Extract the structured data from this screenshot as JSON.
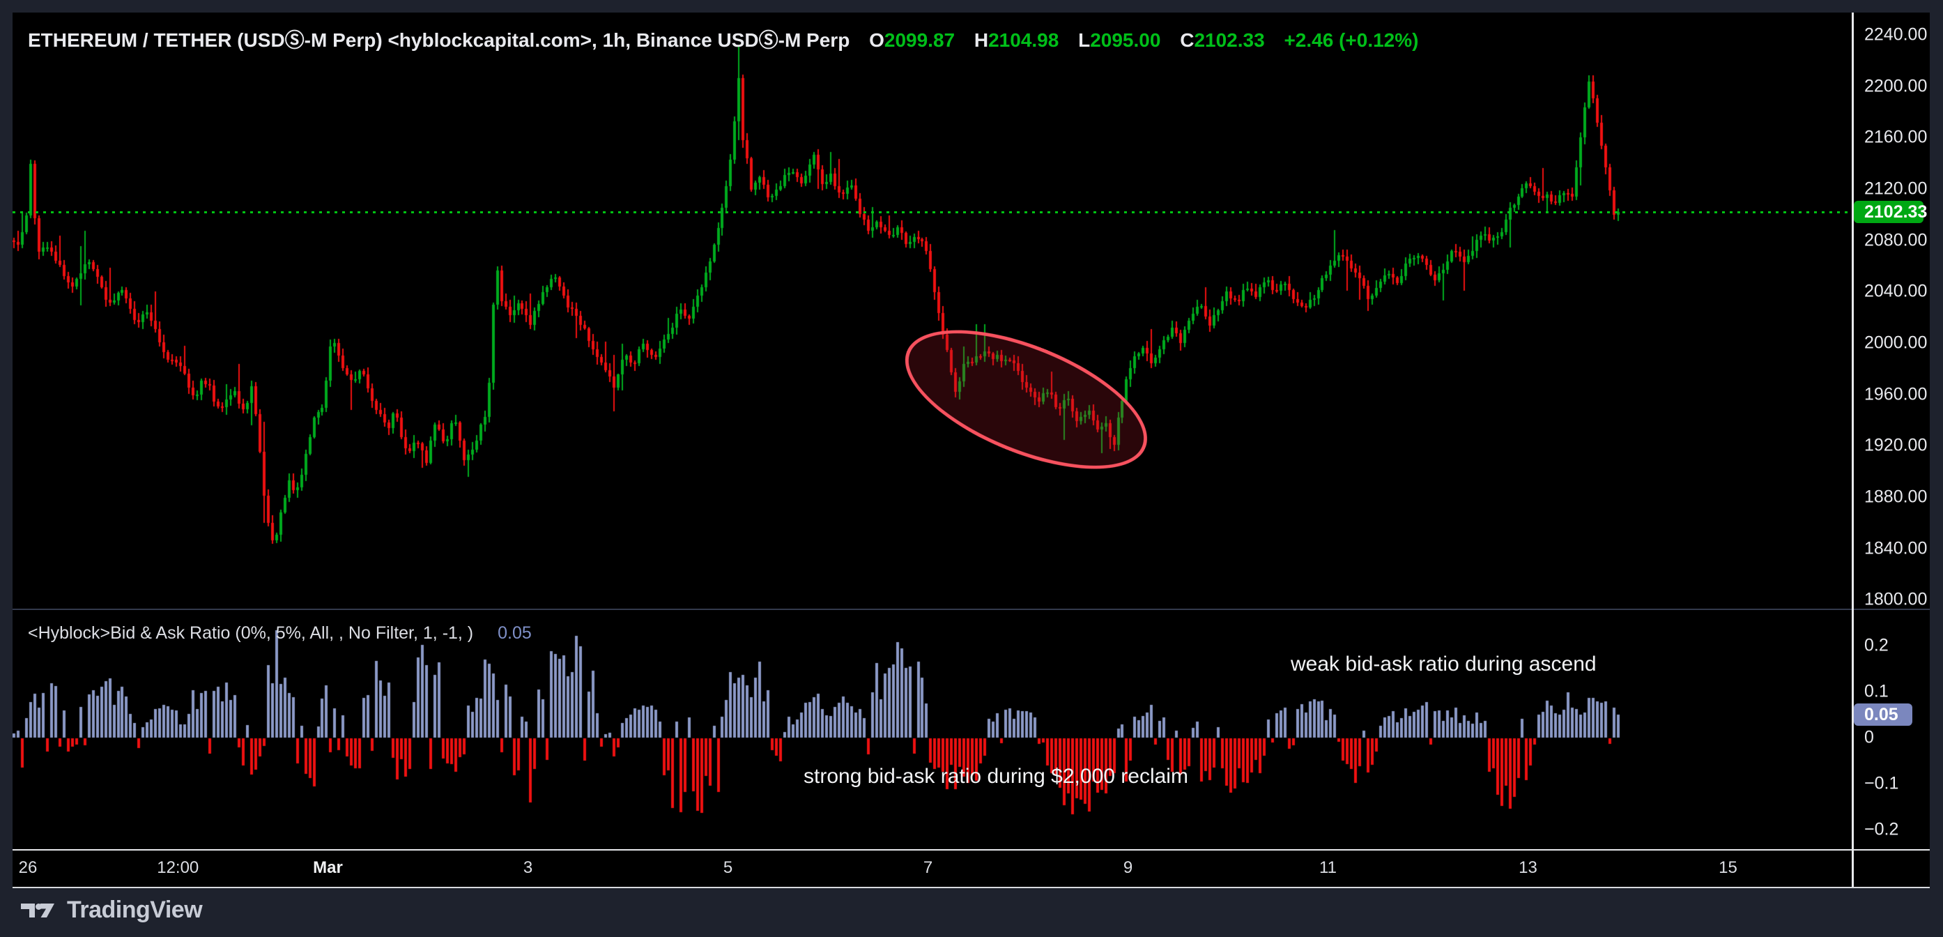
{
  "header": {
    "symbol_title": "ETHEREUM / TETHER (USDⓈ-M Perp) <hyblockcapital.com>, 1h, Binance USDⓈ-M Perp",
    "o_label": "O",
    "o": "2099.87",
    "h_label": "H",
    "h": "2104.98",
    "l_label": "L",
    "l": "2095.00",
    "c_label": "C",
    "c": "2102.33",
    "change": "+2.46 (+0.12%)"
  },
  "indicator": {
    "title": "<Hyblock>Bid & Ask Ratio (0%, 5%, All, , No Filter, 1, -1, )",
    "value": "0.05",
    "badge": "0.05"
  },
  "price_axis": {
    "last_price_badge": "2102.33"
  },
  "annotations": {
    "weak": "weak bid-ask ratio during ascend",
    "strong": "strong bid-ask ratio during $2,000 reclaim"
  },
  "footer": {
    "brand": "TradingView"
  },
  "colors": {
    "up": "#00ab1e",
    "down": "#ee1111",
    "bid_bar": "#8b99c7",
    "price_badge": "#00a813",
    "ratio_badge": "#7b87be",
    "dotted_line": "#00c213",
    "legend_green": "#00bf19",
    "annotation_red": "#f7525f"
  },
  "chart_data": {
    "type": "candlestick+histogram",
    "title": "ETHEREUM / TETHER (USDⓈ-M Perp) 1h with Hyblock Bid & Ask Ratio",
    "timeframe": "1h",
    "day_range": [
      -0.16,
      15.955
    ],
    "last_close": 2102.33,
    "ohlc_last": {
      "open": 2099.87,
      "high": 2104.98,
      "low": 2095.0,
      "close": 2102.33
    },
    "price_axis_ticks": [
      {
        "label": "2240.00",
        "p": 2240
      },
      {
        "label": "2200.00",
        "p": 2200
      },
      {
        "label": "2160.00",
        "p": 2160
      },
      {
        "label": "2120.00",
        "p": 2120
      },
      {
        "label": "2080.00",
        "p": 2080
      },
      {
        "label": "2040.00",
        "p": 2040
      },
      {
        "label": "2000.00",
        "p": 2000
      },
      {
        "label": "1960.00",
        "p": 1960
      },
      {
        "label": "1920.00",
        "p": 1920
      },
      {
        "label": "1880.00",
        "p": 1880
      },
      {
        "label": "1840.00",
        "p": 1840
      },
      {
        "label": "1800.00",
        "p": 1800
      }
    ],
    "ratio_axis_ticks": [
      {
        "label": "0.2",
        "v": 0.2
      },
      {
        "label": "0.1",
        "v": 0.1
      },
      {
        "label": "0",
        "v": 0
      },
      {
        "label": "−0.1",
        "v": -0.1
      },
      {
        "label": "−0.2",
        "v": -0.2
      }
    ],
    "ratio_badge_value": 0.05,
    "ratio_last_value": 0.05,
    "time_ticks": [
      {
        "label": "26",
        "day": 0
      },
      {
        "label": "12:00",
        "day": 1.5
      },
      {
        "label": "Mar",
        "day": 3,
        "bold": true
      },
      {
        "label": "3",
        "day": 5
      },
      {
        "label": "5",
        "day": 7
      },
      {
        "label": "7",
        "day": 9
      },
      {
        "label": "9",
        "day": 11
      },
      {
        "label": "11",
        "day": 13
      },
      {
        "label": "13",
        "day": 15
      },
      {
        "label": "15",
        "day": 17
      }
    ],
    "price_path_anchors": [
      [
        -0.16,
        2082
      ],
      [
        -0.08,
        2074
      ],
      [
        0.0,
        2092
      ],
      [
        0.04,
        2150
      ],
      [
        0.12,
        2068
      ],
      [
        0.2,
        2078
      ],
      [
        0.28,
        2068
      ],
      [
        0.38,
        2052
      ],
      [
        0.47,
        2044
      ],
      [
        0.56,
        2058
      ],
      [
        0.65,
        2062
      ],
      [
        0.74,
        2044
      ],
      [
        0.83,
        2030
      ],
      [
        0.96,
        2042
      ],
      [
        1.05,
        2024
      ],
      [
        1.11,
        2016
      ],
      [
        1.21,
        2026
      ],
      [
        1.3,
        2008
      ],
      [
        1.39,
        1992
      ],
      [
        1.49,
        1984
      ],
      [
        1.58,
        1977
      ],
      [
        1.64,
        1966
      ],
      [
        1.7,
        1958
      ],
      [
        1.77,
        1972
      ],
      [
        1.83,
        1968
      ],
      [
        1.89,
        1954
      ],
      [
        1.95,
        1948
      ],
      [
        2.02,
        1958
      ],
      [
        2.08,
        1963
      ],
      [
        2.14,
        1952
      ],
      [
        2.2,
        1946
      ],
      [
        2.26,
        1968
      ],
      [
        2.32,
        1934
      ],
      [
        2.38,
        1881
      ],
      [
        2.44,
        1854
      ],
      [
        2.48,
        1838
      ],
      [
        2.55,
        1868
      ],
      [
        2.63,
        1891
      ],
      [
        2.7,
        1881
      ],
      [
        2.8,
        1913
      ],
      [
        2.88,
        1939
      ],
      [
        2.97,
        1950
      ],
      [
        3.03,
        1988
      ],
      [
        3.07,
        2006
      ],
      [
        3.12,
        1994
      ],
      [
        3.17,
        1983
      ],
      [
        3.25,
        1968
      ],
      [
        3.32,
        1975
      ],
      [
        3.38,
        1977
      ],
      [
        3.44,
        1962
      ],
      [
        3.5,
        1948
      ],
      [
        3.57,
        1940
      ],
      [
        3.63,
        1934
      ],
      [
        3.69,
        1948
      ],
      [
        3.75,
        1930
      ],
      [
        3.81,
        1913
      ],
      [
        3.88,
        1920
      ],
      [
        3.94,
        1923
      ],
      [
        4.0,
        1903
      ],
      [
        4.09,
        1939
      ],
      [
        4.19,
        1919
      ],
      [
        4.29,
        1944
      ],
      [
        4.37,
        1909
      ],
      [
        4.44,
        1916
      ],
      [
        4.5,
        1923
      ],
      [
        4.56,
        1938
      ],
      [
        4.62,
        1950
      ],
      [
        4.68,
        2040
      ],
      [
        4.7,
        2072
      ],
      [
        4.74,
        2036
      ],
      [
        4.83,
        2021
      ],
      [
        4.93,
        2031
      ],
      [
        5.05,
        2016
      ],
      [
        5.18,
        2040
      ],
      [
        5.3,
        2052
      ],
      [
        5.42,
        2030
      ],
      [
        5.55,
        2016
      ],
      [
        5.67,
        1997
      ],
      [
        5.8,
        1977
      ],
      [
        5.88,
        1966
      ],
      [
        5.98,
        1992
      ],
      [
        6.07,
        1983
      ],
      [
        6.17,
        2001
      ],
      [
        6.29,
        1987
      ],
      [
        6.41,
        2006
      ],
      [
        6.54,
        2025
      ],
      [
        6.64,
        2021
      ],
      [
        6.72,
        2040
      ],
      [
        6.81,
        2055
      ],
      [
        6.91,
        2084
      ],
      [
        7.01,
        2122
      ],
      [
        7.06,
        2151
      ],
      [
        7.11,
        2190
      ],
      [
        7.13,
        2208
      ],
      [
        7.16,
        2162
      ],
      [
        7.22,
        2140
      ],
      [
        7.26,
        2117
      ],
      [
        7.35,
        2132
      ],
      [
        7.43,
        2113
      ],
      [
        7.53,
        2122
      ],
      [
        7.6,
        2130
      ],
      [
        7.66,
        2136
      ],
      [
        7.72,
        2126
      ],
      [
        7.78,
        2127
      ],
      [
        7.88,
        2146
      ],
      [
        7.97,
        2122
      ],
      [
        8.05,
        2132
      ],
      [
        8.15,
        2113
      ],
      [
        8.25,
        2122
      ],
      [
        8.34,
        2103
      ],
      [
        8.43,
        2089
      ],
      [
        8.53,
        2094
      ],
      [
        8.63,
        2084
      ],
      [
        8.71,
        2089
      ],
      [
        8.8,
        2079
      ],
      [
        8.9,
        2084
      ],
      [
        9.0,
        2074
      ],
      [
        9.08,
        2045
      ],
      [
        9.17,
        2006
      ],
      [
        9.25,
        1981
      ],
      [
        9.31,
        1958
      ],
      [
        9.37,
        1983
      ],
      [
        9.5,
        1988
      ],
      [
        9.62,
        1992
      ],
      [
        9.75,
        1987
      ],
      [
        9.87,
        1983
      ],
      [
        9.99,
        1968
      ],
      [
        10.12,
        1953
      ],
      [
        10.21,
        1963
      ],
      [
        10.33,
        1948
      ],
      [
        10.42,
        1958
      ],
      [
        10.52,
        1938
      ],
      [
        10.62,
        1948
      ],
      [
        10.71,
        1934
      ],
      [
        10.81,
        1938
      ],
      [
        10.87,
        1912
      ],
      [
        10.92,
        1942
      ],
      [
        11.0,
        1968
      ],
      [
        11.08,
        1987
      ],
      [
        11.17,
        1997
      ],
      [
        11.27,
        1983
      ],
      [
        11.37,
        2001
      ],
      [
        11.46,
        2011
      ],
      [
        11.55,
        2001
      ],
      [
        11.65,
        2021
      ],
      [
        11.75,
        2030
      ],
      [
        11.84,
        2016
      ],
      [
        11.92,
        2025
      ],
      [
        12.02,
        2040
      ],
      [
        12.12,
        2030
      ],
      [
        12.21,
        2045
      ],
      [
        12.3,
        2035
      ],
      [
        12.4,
        2050
      ],
      [
        12.5,
        2040
      ],
      [
        12.58,
        2050
      ],
      [
        12.67,
        2035
      ],
      [
        12.77,
        2025
      ],
      [
        12.87,
        2035
      ],
      [
        12.96,
        2050
      ],
      [
        13.05,
        2060
      ],
      [
        13.15,
        2070
      ],
      [
        13.25,
        2060
      ],
      [
        13.33,
        2050
      ],
      [
        13.43,
        2035
      ],
      [
        13.52,
        2045
      ],
      [
        13.62,
        2055
      ],
      [
        13.71,
        2045
      ],
      [
        13.8,
        2060
      ],
      [
        13.9,
        2070
      ],
      [
        14.0,
        2060
      ],
      [
        14.09,
        2050
      ],
      [
        14.18,
        2060
      ],
      [
        14.28,
        2074
      ],
      [
        14.38,
        2065
      ],
      [
        14.47,
        2074
      ],
      [
        14.56,
        2084
      ],
      [
        14.66,
        2079
      ],
      [
        14.76,
        2089
      ],
      [
        14.84,
        2103
      ],
      [
        14.93,
        2117
      ],
      [
        15.03,
        2127
      ],
      [
        15.13,
        2113
      ],
      [
        15.21,
        2117
      ],
      [
        15.3,
        2108
      ],
      [
        15.37,
        2117
      ],
      [
        15.46,
        2113
      ],
      [
        15.52,
        2141
      ],
      [
        15.58,
        2180
      ],
      [
        15.64,
        2205
      ],
      [
        15.7,
        2180
      ],
      [
        15.76,
        2151
      ],
      [
        15.83,
        2122
      ],
      [
        15.89,
        2108
      ],
      [
        15.955,
        2102.33
      ]
    ],
    "ratio_segments": [
      [
        -0.16,
        -0.05,
        -1,
        0.09
      ],
      [
        -0.05,
        0.35,
        1,
        0.13
      ],
      [
        0.35,
        0.48,
        -1,
        0.04
      ],
      [
        0.48,
        1.05,
        1,
        0.14
      ],
      [
        1.05,
        1.12,
        -1,
        0.03
      ],
      [
        1.12,
        1.55,
        1,
        0.08
      ],
      [
        1.55,
        2.1,
        1,
        0.15
      ],
      [
        2.1,
        2.34,
        -1,
        0.1
      ],
      [
        2.34,
        2.66,
        1,
        0.24
      ],
      [
        2.66,
        2.9,
        -1,
        0.16
      ],
      [
        2.9,
        3.15,
        1,
        0.14
      ],
      [
        3.15,
        3.32,
        -1,
        0.09
      ],
      [
        3.32,
        3.62,
        1,
        0.18
      ],
      [
        3.62,
        3.82,
        -1,
        0.1
      ],
      [
        3.82,
        4.12,
        1,
        0.24
      ],
      [
        4.12,
        4.38,
        -1,
        0.08
      ],
      [
        4.38,
        4.82,
        1,
        0.18
      ],
      [
        4.82,
        5.08,
        -1,
        0.17
      ],
      [
        5.08,
        5.68,
        1,
        0.23
      ],
      [
        5.68,
        5.92,
        -1,
        0.05
      ],
      [
        5.92,
        6.32,
        1,
        0.09
      ],
      [
        6.32,
        6.92,
        -1,
        0.2
      ],
      [
        6.92,
        7.42,
        1,
        0.19
      ],
      [
        7.42,
        7.58,
        -1,
        0.08
      ],
      [
        7.58,
        8.35,
        1,
        0.1
      ],
      [
        8.35,
        9.0,
        1,
        0.21
      ],
      [
        9.0,
        9.55,
        -1,
        0.12
      ],
      [
        9.55,
        10.17,
        1,
        0.07
      ],
      [
        10.17,
        11.02,
        -1,
        0.18
      ],
      [
        11.02,
        11.37,
        1,
        0.09
      ],
      [
        11.37,
        12.37,
        -1,
        0.13
      ],
      [
        12.37,
        13.12,
        1,
        0.09
      ],
      [
        13.12,
        13.47,
        -1,
        0.1
      ],
      [
        13.47,
        14.57,
        1,
        0.08
      ],
      [
        14.57,
        15.02,
        -1,
        0.17
      ],
      [
        15.02,
        15.955,
        1,
        0.11
      ]
    ],
    "ellipse": {
      "day": 9.95,
      "price": 1959,
      "rx_days": 1.25,
      "ry_price": 39,
      "rotate_deg": 22
    },
    "last_price_line": 2102.33,
    "ylim_price": [
      1800,
      2257
    ],
    "ylim_ratio": [
      -0.24,
      0.27
    ],
    "grid": false,
    "legend_position": "top-left"
  }
}
